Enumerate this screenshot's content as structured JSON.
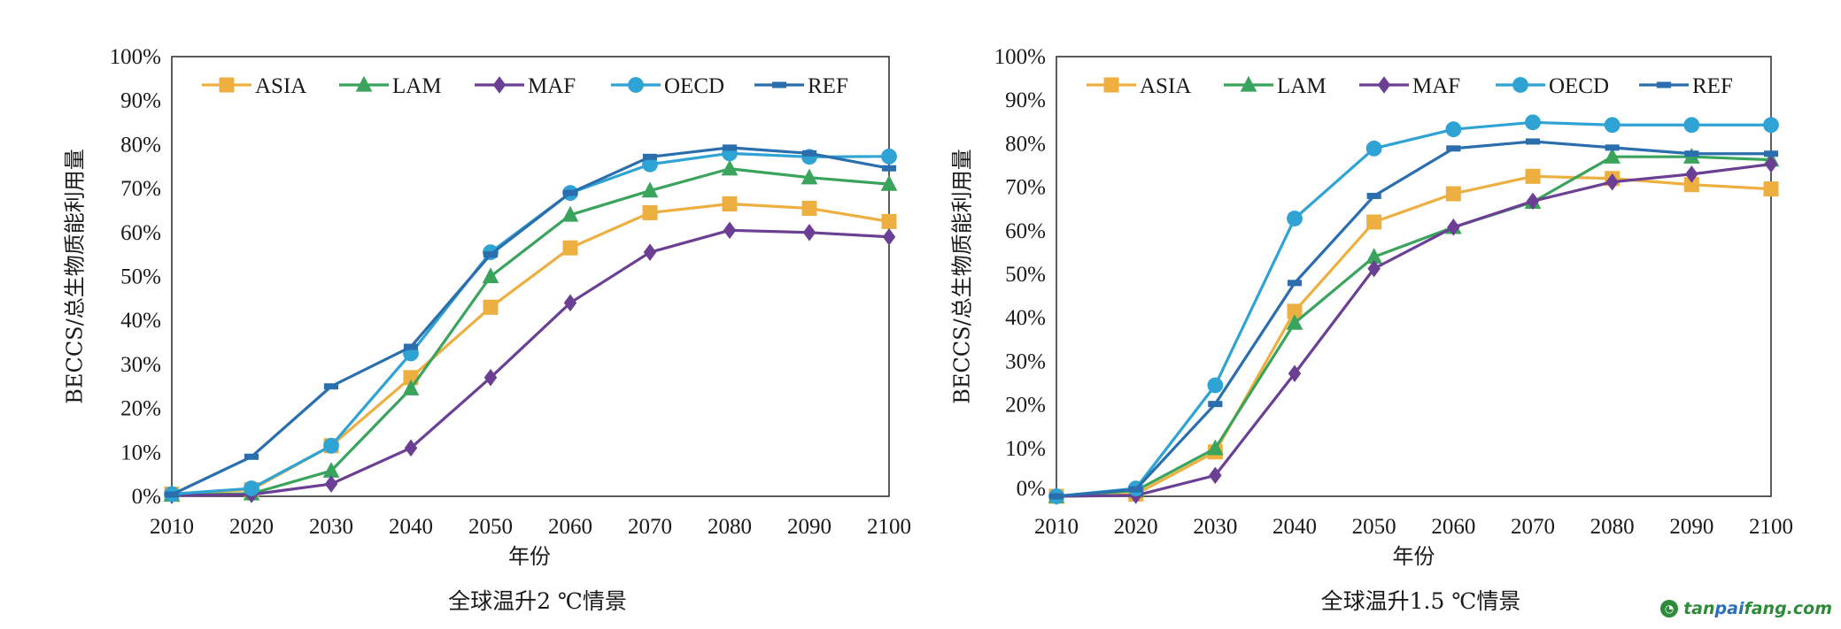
{
  "chart_data": [
    {
      "type": "line",
      "title": "全球温升2 ℃情景",
      "xlabel": "年份",
      "ylabel": "BECCS/总生物质能利用量",
      "x": [
        2010,
        2020,
        2030,
        2040,
        2050,
        2060,
        2070,
        2080,
        2090,
        2100
      ],
      "x_tick_labels": [
        "2010",
        "2020",
        "2030",
        "2040",
        "2050",
        "2060",
        "2070",
        "2080",
        "2090",
        "2100"
      ],
      "ylim": [
        0,
        100
      ],
      "y_ticks": [
        0,
        10,
        20,
        30,
        40,
        50,
        60,
        70,
        80,
        90,
        100
      ],
      "y_tick_labels": [
        "0%",
        "10%",
        "20%",
        "30%",
        "40%",
        "50%",
        "60%",
        "70%",
        "80%",
        "90%",
        "100%"
      ],
      "y_unit": "%",
      "grid": false,
      "legend_position": "top",
      "series": [
        {
          "name": "ASIA",
          "color": "#EDB040",
          "marker": "square",
          "values": [
            0.5,
            1.5,
            11.5,
            27,
            43,
            56.5,
            64.5,
            66.5,
            65.5,
            62.5
          ]
        },
        {
          "name": "LAM",
          "color": "#3AA35C",
          "marker": "triangle",
          "values": [
            0.3,
            0.6,
            5.8,
            24.5,
            50,
            64,
            69.5,
            74.5,
            72.5,
            71
          ]
        },
        {
          "name": "MAF",
          "color": "#6A3F94",
          "marker": "diamond",
          "values": [
            0.2,
            0.4,
            2.8,
            11,
            27,
            44,
            55.5,
            60.5,
            60,
            59
          ]
        },
        {
          "name": "OECD",
          "color": "#2FA3D4",
          "marker": "circle",
          "values": [
            0.5,
            1.8,
            11.5,
            32.5,
            55.5,
            69,
            75.5,
            78,
            77.2,
            77.3
          ]
        },
        {
          "name": "REF",
          "color": "#2A6EAD",
          "marker": "dash",
          "values": [
            0.4,
            9,
            25,
            34,
            55,
            69,
            77.2,
            79.3,
            78,
            74.6
          ]
        }
      ]
    },
    {
      "type": "line",
      "title": "全球温升1.5 ℃情景",
      "xlabel": "年份",
      "ylabel": "BECCS/总生物质能利用量",
      "x": [
        2010,
        2020,
        2030,
        2040,
        2050,
        2060,
        2070,
        2080,
        2090,
        2100
      ],
      "x_tick_labels": [
        "2010",
        "2020",
        "2030",
        "2040",
        "2050",
        "2060",
        "2070",
        "2080",
        "2090",
        "2100"
      ],
      "ylim": [
        -1,
        100
      ],
      "y_ticks": [
        0,
        10,
        20,
        30,
        40,
        50,
        60,
        70,
        80,
        90,
        100
      ],
      "y_tick_labels": [
        "0%",
        "10%",
        "20%",
        "30%",
        "40%",
        "50%",
        "60%",
        "70%",
        "80%",
        "90%",
        "100%"
      ],
      "y_unit": "%",
      "grid": false,
      "legend_position": "top",
      "series": [
        {
          "name": "ASIA",
          "color": "#EDB040",
          "marker": "square",
          "values": [
            -1,
            -0.5,
            9.2,
            41.5,
            62,
            68.5,
            72.5,
            72,
            70.6,
            69.6
          ]
        },
        {
          "name": "LAM",
          "color": "#3AA35C",
          "marker": "triangle",
          "values": [
            -1,
            0.3,
            10,
            38.8,
            54,
            60.8,
            66.6,
            77,
            77,
            76.3
          ]
        },
        {
          "name": "MAF",
          "color": "#6A3F94",
          "marker": "diamond",
          "values": [
            -1,
            -0.8,
            3.8,
            27.2,
            51.3,
            60.8,
            66.8,
            71.2,
            73,
            75.3
          ]
        },
        {
          "name": "OECD",
          "color": "#2FA3D4",
          "marker": "circle",
          "values": [
            -1,
            0.8,
            24.5,
            62.8,
            78.9,
            83.3,
            84.9,
            84.3,
            84.3,
            84.3
          ]
        },
        {
          "name": "REF",
          "color": "#2A6EAD",
          "marker": "dash",
          "values": [
            -1,
            0.6,
            20.2,
            48,
            68,
            78.9,
            80.5,
            79.1,
            77.7,
            77.7
          ]
        }
      ]
    }
  ],
  "watermark": {
    "icon": "tanpaifang-logo-icon",
    "parts": [
      {
        "text": "tan",
        "color": "#2E8B3A"
      },
      {
        "text": "pai",
        "color": "#2B6FB8"
      },
      {
        "text": "fang.com",
        "color": "#2E8B3A"
      }
    ]
  }
}
